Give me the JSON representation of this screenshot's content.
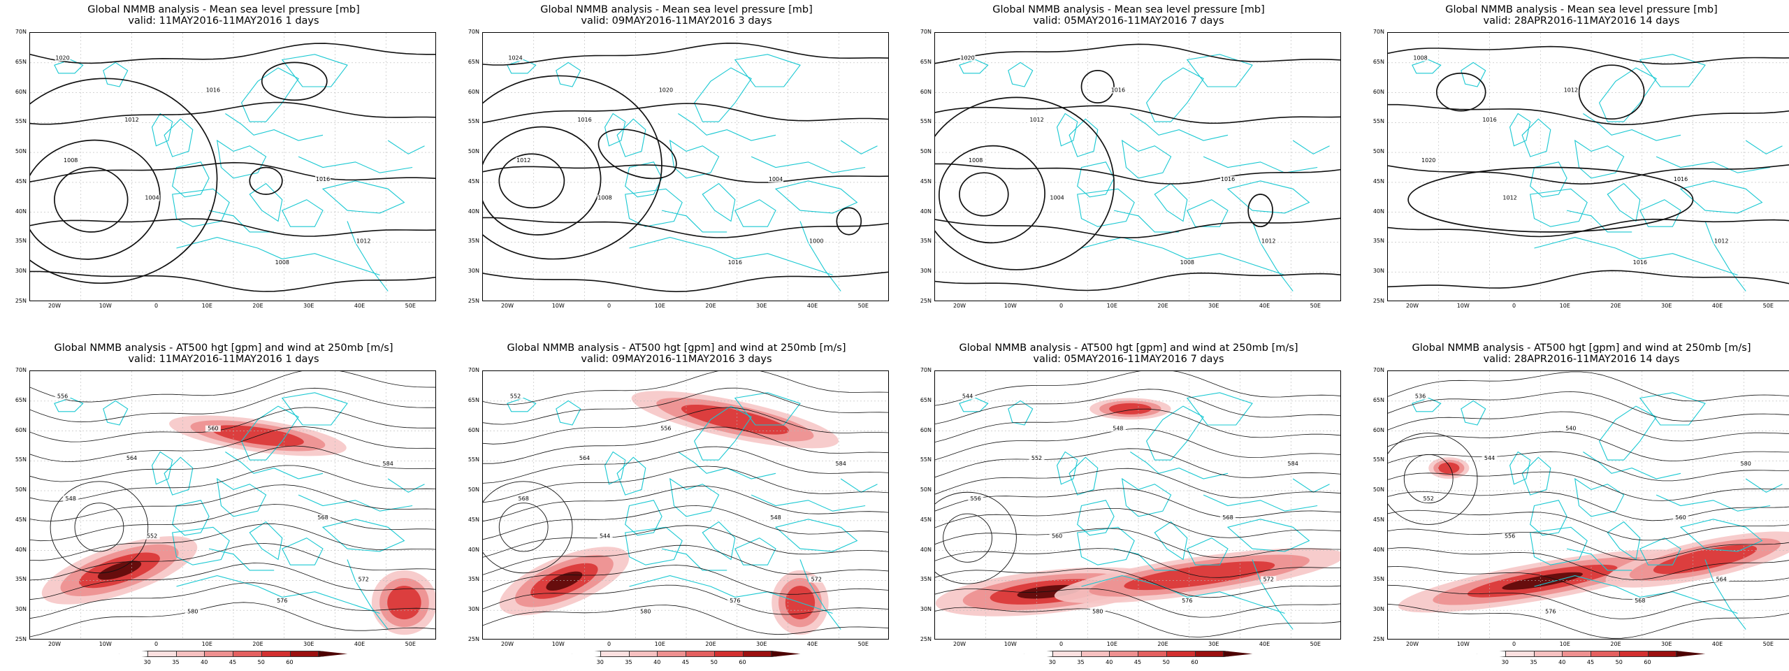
{
  "colors": {
    "coast": "#19c8d2",
    "contour": "#111111",
    "grid": "#b8b8b8",
    "wind_light": "#f6c7c7",
    "wind_mid": "#ec8f8f",
    "wind_strong": "#d93434",
    "wind_max": "#5a0808"
  },
  "axes": {
    "lat_labels": [
      "70N",
      "65N",
      "60N",
      "55N",
      "50N",
      "45N",
      "40N",
      "35N",
      "30N",
      "25N"
    ],
    "lon_labels": [
      "20W",
      "10W",
      "0",
      "10E",
      "20E",
      "30E",
      "40E",
      "50E"
    ]
  },
  "mslp_panels": [
    {
      "title": "Global NMMB analysis - Mean sea level pressure [mb]",
      "valid": "valid: 11MAY2016-11MAY2016   1 days",
      "contour_labels": [
        "1020",
        "1016",
        "1012",
        "1008",
        "1004",
        "1016",
        "1012",
        "1008"
      ]
    },
    {
      "title": "Global NMMB analysis - Mean sea level pressure [mb]",
      "valid": "valid: 09MAY2016-11MAY2016   3 days",
      "contour_labels": [
        "1024",
        "1020",
        "1016",
        "1012",
        "1008",
        "1004",
        "1000",
        "1016"
      ]
    },
    {
      "title": "Global NMMB analysis - Mean sea level pressure [mb]",
      "valid": "valid: 05MAY2016-11MAY2016   7 days",
      "contour_labels": [
        "1020",
        "1016",
        "1012",
        "1008",
        "1004",
        "1016",
        "1012",
        "1008"
      ]
    },
    {
      "title": "Global NMMB analysis - Mean sea level pressure [mb]",
      "valid": "valid: 28APR2016-11MAY2016   14 days",
      "contour_labels": [
        "1008",
        "1012",
        "1016",
        "1020",
        "1012",
        "1016",
        "1012",
        "1016"
      ]
    }
  ],
  "z500_panels": [
    {
      "title": "Global NMMB analysis - AT500 hgt [gpm] and wind at 250mb [m/s]",
      "valid": "valid: 11MAY2016-11MAY2016   1 days",
      "contour_labels": [
        "556",
        "560",
        "564",
        "548",
        "552",
        "568",
        "572",
        "576",
        "580",
        "584"
      ]
    },
    {
      "title": "Global NMMB analysis - AT500 hgt [gpm] and wind at 250mb [m/s]",
      "valid": "valid: 09MAY2016-11MAY2016   3 days",
      "contour_labels": [
        "552",
        "556",
        "564",
        "568",
        "544",
        "548",
        "572",
        "576",
        "580",
        "584"
      ]
    },
    {
      "title": "Global NMMB analysis - AT500 hgt [gpm] and wind at 250mb [m/s]",
      "valid": "valid: 05MAY2016-11MAY2016   7 days",
      "contour_labels": [
        "544",
        "548",
        "552",
        "556",
        "560",
        "568",
        "572",
        "576",
        "580",
        "584"
      ]
    },
    {
      "title": "Global NMMB analysis - AT500 hgt [gpm] and wind at 250mb [m/s]",
      "valid": "valid: 28APR2016-11MAY2016   14 days",
      "contour_labels": [
        "536",
        "540",
        "544",
        "552",
        "556",
        "560",
        "564",
        "568",
        "576",
        "580"
      ]
    }
  ],
  "colorbar": {
    "labels": [
      "30",
      "35",
      "40",
      "45",
      "50",
      "60"
    ],
    "colors": [
      "#ffffff",
      "#fbe0e0",
      "#f6c0c0",
      "#ee9090",
      "#e46060",
      "#d33030",
      "#9c1010",
      "#4d0000"
    ]
  }
}
